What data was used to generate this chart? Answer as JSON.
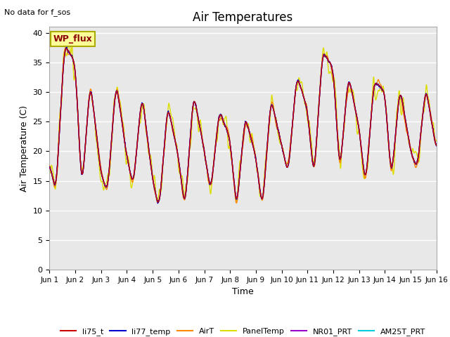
{
  "title": "Air Temperatures",
  "xlabel": "Time",
  "ylabel": "Air Temperature (C)",
  "annotation": "No data for f_sos",
  "wp_flux_label": "WP_flux",
  "ylim": [
    0,
    41
  ],
  "yticks": [
    0,
    5,
    10,
    15,
    20,
    25,
    30,
    35,
    40
  ],
  "x_labels": [
    "Jun 1",
    "Jun 2",
    "Jun 3",
    "Jun 4",
    "Jun 5",
    "Jun 6",
    "Jun 7",
    "Jun 8",
    "Jun 9",
    "Jun 10",
    "Jun 11",
    "Jun 12",
    "Jun 13",
    "Jun 14",
    "Jun 15",
    "Jun 16"
  ],
  "series_order": [
    "PanelTemp",
    "AirT",
    "AM25T_PRT",
    "NR01_PRT",
    "li77_temp",
    "li75_t"
  ],
  "series": {
    "li75_t": {
      "color": "#cc0000",
      "lw": 1.0
    },
    "li77_temp": {
      "color": "#0000cc",
      "lw": 1.0
    },
    "AirT": {
      "color": "#ff8800",
      "lw": 1.0
    },
    "PanelTemp": {
      "color": "#dddd00",
      "lw": 1.0
    },
    "NR01_PRT": {
      "color": "#9900cc",
      "lw": 1.0
    },
    "AM25T_PRT": {
      "color": "#00ccdd",
      "lw": 1.0
    }
  },
  "background_color": "#e8e8e8",
  "grid_color": "#ffffff",
  "day_peaks": [
    38,
    32,
    32,
    30,
    28,
    30,
    27,
    26,
    29,
    33,
    37,
    33,
    32,
    31,
    31
  ],
  "day_mins": [
    13,
    13,
    13,
    14,
    10,
    10,
    13,
    10,
    10,
    16,
    15,
    16,
    14,
    15,
    17
  ],
  "day_start": [
    18,
    35,
    16,
    19,
    15,
    19,
    20,
    22,
    19,
    21,
    27,
    34,
    24,
    30,
    20
  ]
}
